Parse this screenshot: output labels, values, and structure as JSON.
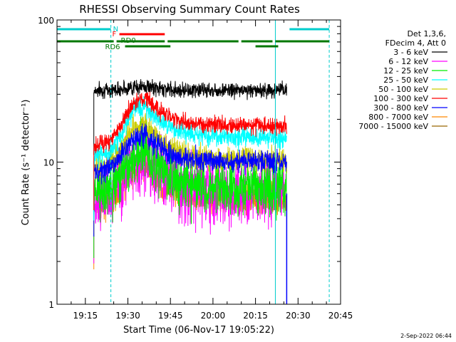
{
  "chart_data": {
    "type": "line",
    "title": "RHESSI Observing Summary Count Rates",
    "xlabel": "Start Time (06-Nov-17 19:05:22)",
    "ylabel": "Count Rate (s⁻¹ detector⁻¹)",
    "y_scale": "log",
    "ylim": [
      1,
      100
    ],
    "y_ticks": [
      "1",
      "10",
      "100"
    ],
    "x_range_minutes": [
      "19:05",
      "20:45"
    ],
    "x_ticks": [
      "19:15",
      "19:30",
      "19:45",
      "20:00",
      "20:15",
      "20:30",
      "20:45"
    ],
    "legend": {
      "placement": "top-right",
      "header": [
        "Det 1,3,6,",
        "FDecim 4, Att 0"
      ]
    },
    "series": [
      {
        "name": "3 - 6 keV",
        "color": "#000000",
        "base": 32,
        "peak": 34,
        "decay": 32,
        "noise": 0.06
      },
      {
        "name": "6 - 12 keV",
        "color": "#ff00ff",
        "base": 5.5,
        "peak": 11,
        "decay": 6,
        "noise": 0.28
      },
      {
        "name": "12 - 25 keV",
        "color": "#00ee00",
        "base": 6,
        "peak": 12.5,
        "decay": 6.5,
        "noise": 0.22
      },
      {
        "name": "25 - 50 keV",
        "color": "#00ffff",
        "base": 11,
        "peak": 25,
        "decay": 15,
        "noise": 0.08
      },
      {
        "name": "50 - 100 keV",
        "color": "#cccc00",
        "base": 9,
        "peak": 19,
        "decay": 10.5,
        "noise": 0.1
      },
      {
        "name": "100 - 300 keV",
        "color": "#ff0000",
        "base": 13,
        "peak": 29,
        "decay": 18,
        "noise": 0.07
      },
      {
        "name": "300 - 800 keV",
        "color": "#0000ff",
        "base": 8.5,
        "peak": 16,
        "decay": 10,
        "noise": 0.09
      },
      {
        "name": "800 - 7000 keV",
        "color": "#ff8800",
        "base": 5,
        "peak": 9.5,
        "decay": 5.5,
        "noise": 0.12
      },
      {
        "name": "7000 - 15000 keV",
        "color": "#996600",
        "base": 0,
        "peak": 0,
        "decay": 0,
        "noise": 0
      }
    ],
    "data_window_minutes": [
      "19:18",
      "20:26"
    ],
    "flare_peak_minute": "19:36",
    "markers": {
      "N": {
        "label": "N",
        "color": "#00cccc",
        "segments": [
          [
            "19:05",
            "19:24"
          ],
          [
            "20:27",
            "20:41"
          ]
        ]
      },
      "F": {
        "label": "F",
        "color": "#ff0000",
        "segments": [
          [
            "19:27",
            "19:43"
          ]
        ]
      },
      "RD0": {
        "label": "RD0",
        "color": "#007700",
        "segments": [
          [
            "19:05",
            "19:25"
          ],
          [
            "19:26",
            "19:43"
          ],
          [
            "19:44",
            "20:09"
          ],
          [
            "20:10",
            "20:21"
          ],
          [
            "20:22",
            "20:41"
          ]
        ]
      },
      "RD6": {
        "label": "RD6",
        "color": "#007700",
        "segments": [
          [
            "19:29",
            "19:45"
          ],
          [
            "20:15",
            "20:23"
          ]
        ]
      }
    },
    "vertical_lines": [
      {
        "minute": "19:24",
        "style": "dashed",
        "color": "#00cccc"
      },
      {
        "minute": "20:22",
        "style": "solid",
        "color": "#00cccc"
      },
      {
        "minute": "20:41",
        "style": "dashed",
        "color": "#00cccc"
      }
    ]
  },
  "timestamp": "2-Sep-2022 06:44"
}
